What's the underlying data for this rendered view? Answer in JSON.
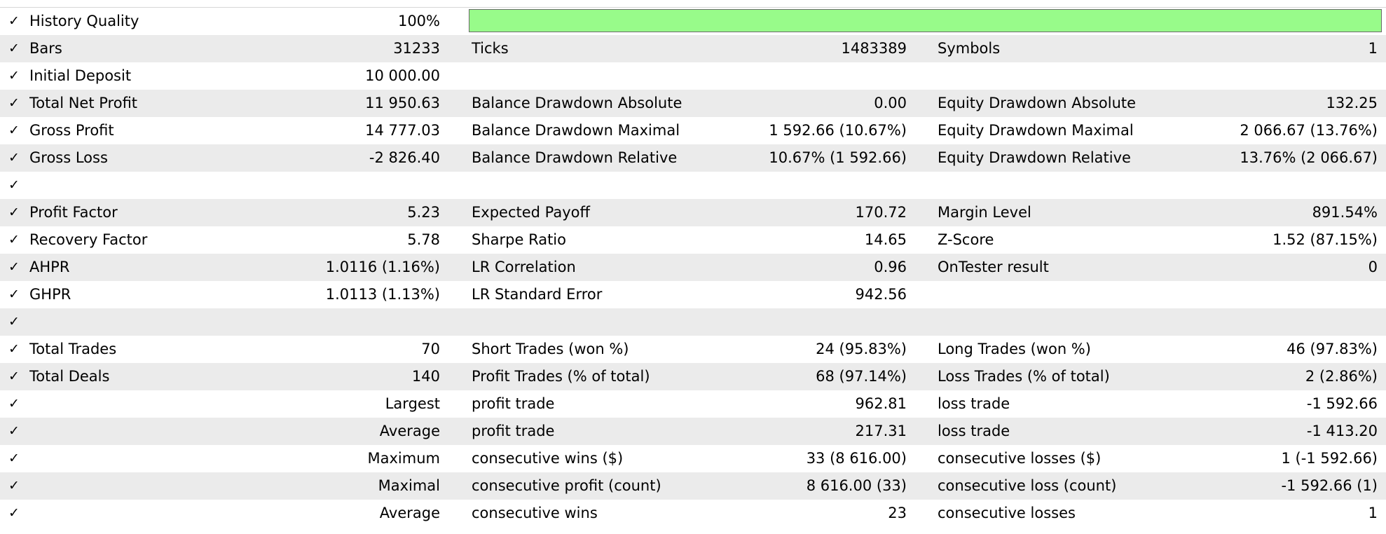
{
  "colors": {
    "row_alt": "#ebebeb",
    "quality_fill": "#98fb8a",
    "quality_border": "#6a6a6a"
  },
  "check_glyph": "✓",
  "history_quality": {
    "label": "History Quality",
    "value": "100%",
    "fraction": 1.0
  },
  "rows": [
    {
      "l1": "Bars",
      "v1": "31233",
      "l2": "Ticks",
      "v2": "1483389",
      "l3": "Symbols",
      "v3": "1"
    },
    {
      "l1": "Initial Deposit",
      "v1": "10 000.00",
      "l2": "",
      "v2": "",
      "l3": "",
      "v3": ""
    },
    {
      "l1": "Total Net Profit",
      "v1": "11 950.63",
      "l2": "Balance Drawdown Absolute",
      "v2": "0.00",
      "l3": "Equity Drawdown Absolute",
      "v3": "132.25"
    },
    {
      "l1": "Gross Profit",
      "v1": "14 777.03",
      "l2": "Balance Drawdown Maximal",
      "v2": "1 592.66 (10.67%)",
      "l3": "Equity Drawdown Maximal",
      "v3": "2 066.67 (13.76%)"
    },
    {
      "l1": "Gross Loss",
      "v1": "-2 826.40",
      "l2": "Balance Drawdown Relative",
      "v2": "10.67% (1 592.66)",
      "l3": "Equity Drawdown Relative",
      "v3": "13.76% (2 066.67)"
    },
    {
      "l1": "",
      "v1": "",
      "l2": "",
      "v2": "",
      "l3": "",
      "v3": ""
    },
    {
      "l1": "Profit Factor",
      "v1": "5.23",
      "l2": "Expected Payoff",
      "v2": "170.72",
      "l3": "Margin Level",
      "v3": "891.54%"
    },
    {
      "l1": "Recovery Factor",
      "v1": "5.78",
      "l2": "Sharpe Ratio",
      "v2": "14.65",
      "l3": "Z-Score",
      "v3": "1.52 (87.15%)"
    },
    {
      "l1": "AHPR",
      "v1": "1.0116 (1.16%)",
      "l2": "LR Correlation",
      "v2": "0.96",
      "l3": "OnTester result",
      "v3": "0"
    },
    {
      "l1": "GHPR",
      "v1": "1.0113 (1.13%)",
      "l2": "LR Standard Error",
      "v2": "942.56",
      "l3": "",
      "v3": ""
    },
    {
      "l1": "",
      "v1": "",
      "l2": "",
      "v2": "",
      "l3": "",
      "v3": ""
    },
    {
      "l1": "Total Trades",
      "v1": "70",
      "l2": "Short Trades (won %)",
      "v2": "24 (95.83%)",
      "l3": "Long Trades (won %)",
      "v3": "46 (97.83%)"
    },
    {
      "l1": "Total Deals",
      "v1": "140",
      "l2": "Profit Trades (% of total)",
      "v2": "68 (97.14%)",
      "l3": "Loss Trades (% of total)",
      "v3": "2 (2.86%)"
    },
    {
      "l1": "",
      "v1": "Largest",
      "l2": "profit trade",
      "v2": "962.81",
      "l3": "loss trade",
      "v3": "-1 592.66"
    },
    {
      "l1": "",
      "v1": "Average",
      "l2": "profit trade",
      "v2": "217.31",
      "l3": "loss trade",
      "v3": "-1 413.20"
    },
    {
      "l1": "",
      "v1": "Maximum",
      "l2": "consecutive wins ($)",
      "v2": "33 (8 616.00)",
      "l3": "consecutive losses ($)",
      "v3": "1 (-1 592.66)"
    },
    {
      "l1": "",
      "v1": "Maximal",
      "l2": "consecutive profit (count)",
      "v2": "8 616.00 (33)",
      "l3": "consecutive loss (count)",
      "v3": "-1 592.66 (1)"
    },
    {
      "l1": "",
      "v1": "Average",
      "l2": "consecutive wins",
      "v2": "23",
      "l3": "consecutive losses",
      "v3": "1"
    }
  ]
}
